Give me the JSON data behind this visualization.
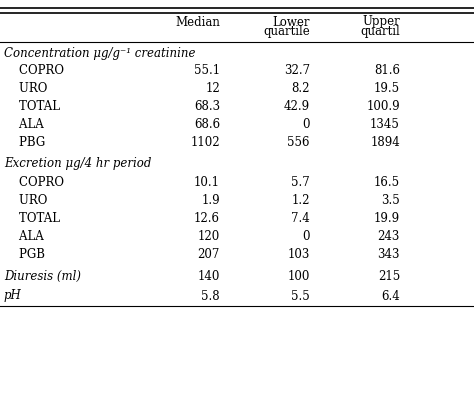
{
  "col_headers_line1": [
    "",
    "Median",
    "Lower",
    "Upper"
  ],
  "col_headers_line2": [
    "",
    "",
    "quartile",
    "quartil"
  ],
  "section1_header": "Concentration μg/g⁻¹ creatinine",
  "section1_rows": [
    [
      "    COPRO",
      "55.1",
      "32.7",
      "81.6"
    ],
    [
      "    URO",
      "12",
      "8.2",
      "19.5"
    ],
    [
      "    TOTAL",
      "68.3",
      "42.9",
      "100.9"
    ],
    [
      "    ALA",
      "68.6",
      "0",
      "1345"
    ],
    [
      "    PBG",
      "1102",
      "556",
      "1894"
    ]
  ],
  "section2_header": "Excretion μg/4 hr period",
  "section2_rows": [
    [
      "    COPRO",
      "10.1",
      "5.7",
      "16.5"
    ],
    [
      "    URO",
      "1.9",
      "1.2",
      "3.5"
    ],
    [
      "    TOTAL",
      "12.6",
      "7.4",
      "19.9"
    ],
    [
      "    ALA",
      "120",
      "0",
      "243"
    ],
    [
      "    PGB",
      "207",
      "103",
      "343"
    ]
  ],
  "diuresis_row": [
    "Diuresis (ml)",
    "140",
    "100",
    "215"
  ],
  "ph_row": [
    "pH",
    "5.8",
    "5.5",
    "6.4"
  ],
  "bg_color": "#ffffff",
  "text_color": "#000000",
  "fs": 8.5
}
